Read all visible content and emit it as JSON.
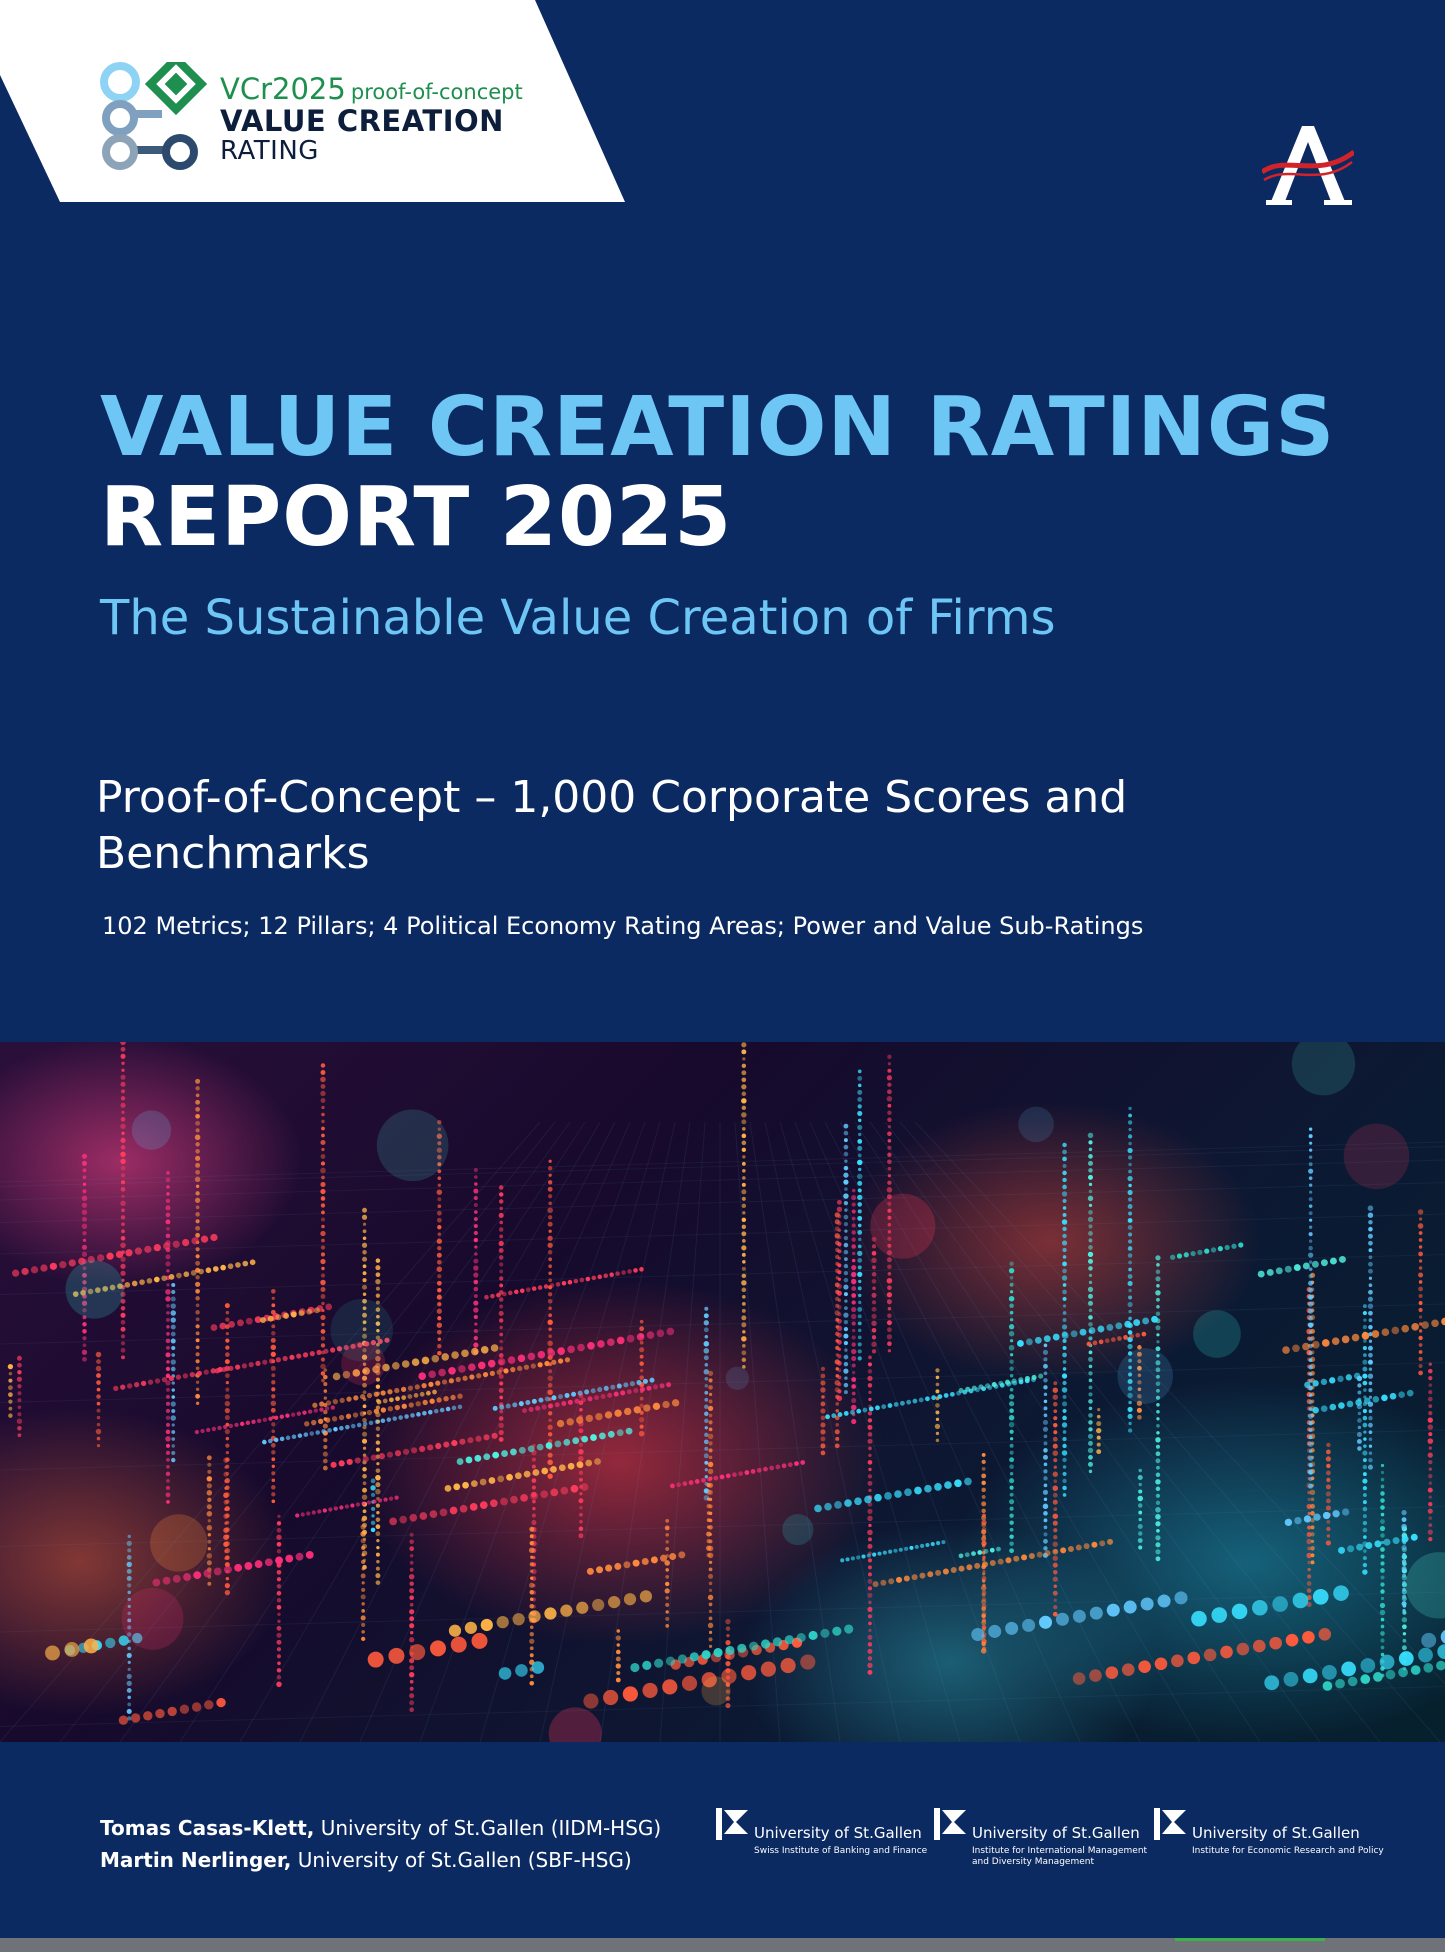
{
  "logo": {
    "line1_main": "VCr2025",
    "line1_suffix": "proof-of-concept",
    "line2": "VALUE CREATION",
    "line3": "RATING",
    "colors": {
      "green": "#1e8f4e",
      "navy": "#0c1e3c",
      "light_blue": "#8fd3f4"
    }
  },
  "publisher_icon": "stylized-A-logo",
  "title": {
    "line1": "VALUE CREATION RATINGS",
    "line2": "REPORT 2025",
    "subtitle": "The Sustainable Value Creation of Firms"
  },
  "heading": {
    "text": "Proof-of-Concept – 1,000 Corporate Scores and Benchmarks",
    "metrics": "102 Metrics; 12 Pillars; 4 Political Economy Rating Areas; Power and Value Sub-Ratings"
  },
  "hero_image": "abstract-glowing-data-circuit-landscape",
  "authors": [
    {
      "name": "Tomas Casas-Klett,",
      "affiliation": "University of St.Gallen (IIDM-HSG)"
    },
    {
      "name": "Martin Nerlinger,",
      "affiliation": "University of St.Gallen (SBF-HSG)"
    }
  ],
  "universities": [
    {
      "name": "University of St.Gallen",
      "institute_line1": "Swiss Institute of Banking and Finance",
      "institute_line2": ""
    },
    {
      "name": "University of St.Gallen",
      "institute_line1": "Institute for International Management",
      "institute_line2": "and Diversity Management"
    },
    {
      "name": "University of St.Gallen",
      "institute_line1": "Institute for Economic Research and Policy",
      "institute_line2": ""
    }
  ],
  "colors": {
    "background": "#0c2a62",
    "title_accent": "#6ec6f4",
    "text": "#ffffff"
  }
}
